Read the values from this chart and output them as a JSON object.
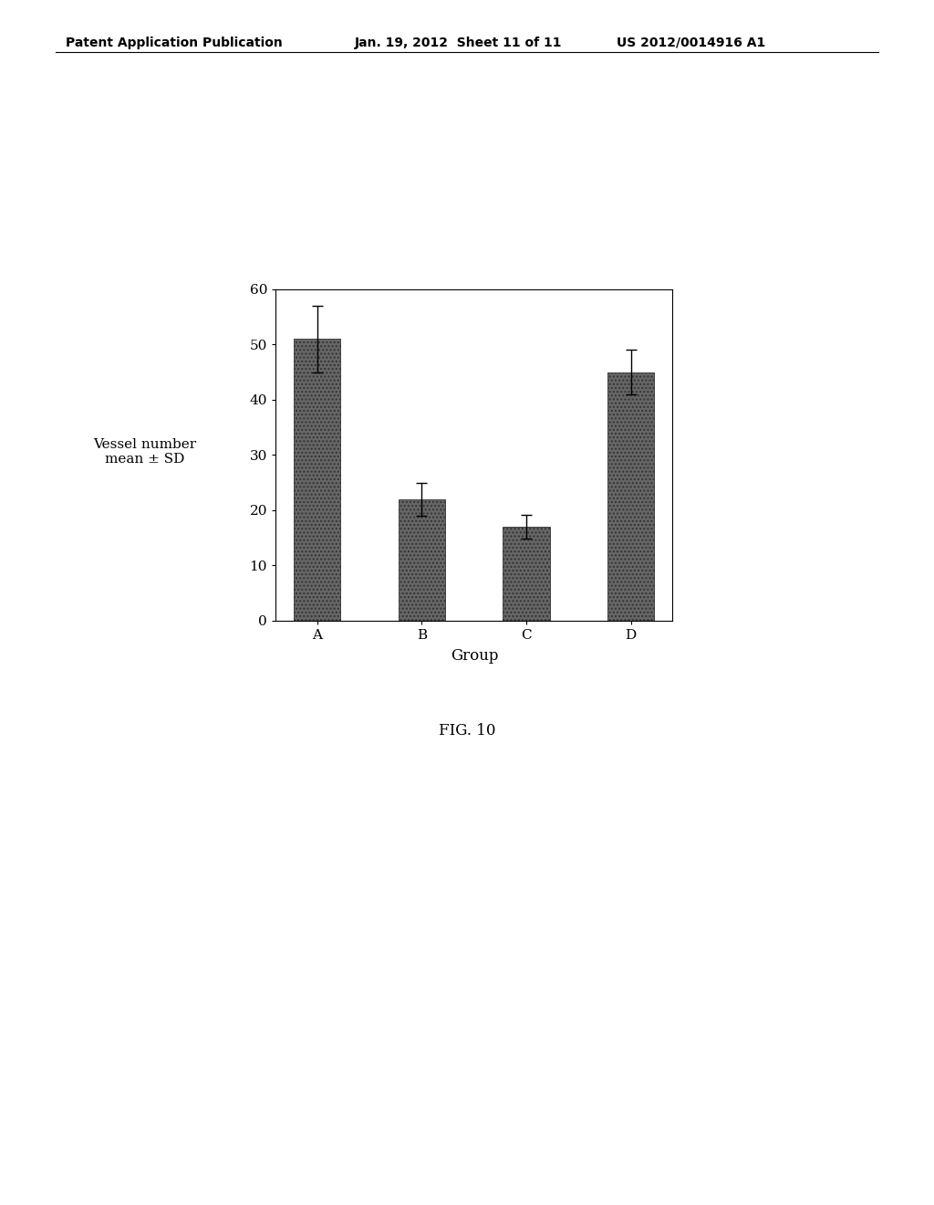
{
  "categories": [
    "A",
    "B",
    "C",
    "D"
  ],
  "values": [
    51.0,
    22.0,
    17.0,
    45.0
  ],
  "errors": [
    6.0,
    3.0,
    2.2,
    4.0
  ],
  "bar_color": "#666666",
  "bar_hatch": "....",
  "ylim": [
    0,
    60
  ],
  "yticks": [
    0,
    10,
    20,
    30,
    40,
    50,
    60
  ],
  "ylabel": "Vessel number\nmean ± SD",
  "xlabel": "Group",
  "fig_caption": "FIG. 10",
  "header_left": "Patent Application Publication",
  "header_mid": "Jan. 19, 2012  Sheet 11 of 11",
  "header_right": "US 2012/0014916 A1",
  "background_color": "#ffffff",
  "bar_width": 0.45,
  "ylabel_fontsize": 11,
  "xlabel_fontsize": 12,
  "tick_fontsize": 11,
  "caption_fontsize": 12,
  "header_fontsize": 10
}
